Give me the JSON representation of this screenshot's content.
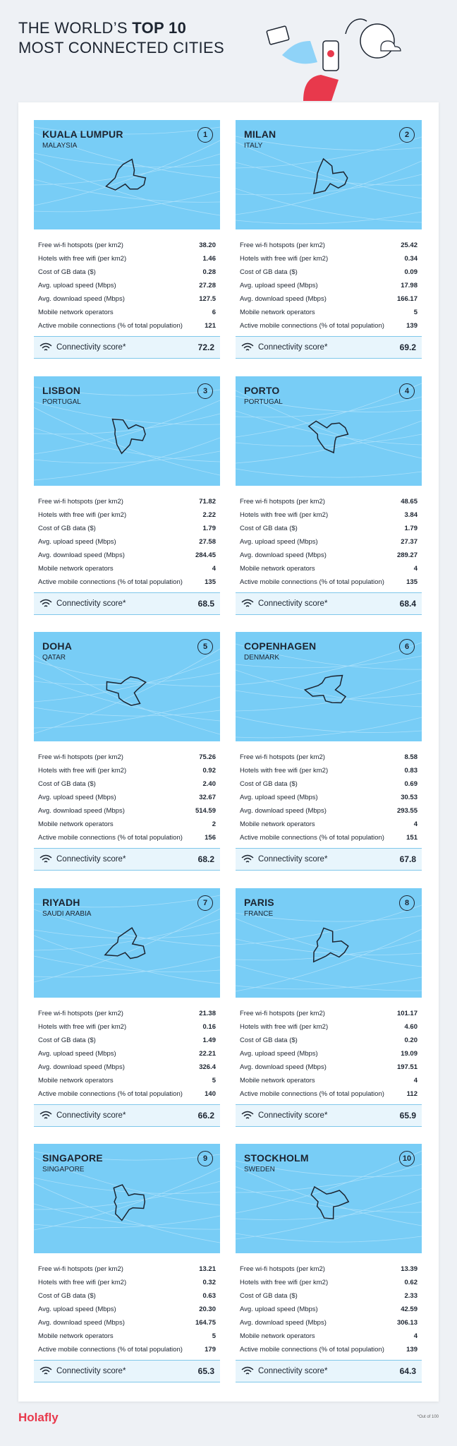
{
  "header": {
    "title_parts": [
      "THE WORLD’S",
      "TOP 10",
      "MOST CONNECTED CITIES"
    ]
  },
  "metric_labels": [
    "Free wi-fi hotspots (per km2)",
    "Hotels with free wifi (per km2)",
    "Cost of GB data ($)",
    "Avg. upload speed (Mbps)",
    "Avg. download speed (Mbps)",
    "Mobile network operators",
    "Active mobile connections (% of total population)"
  ],
  "score_label": "Connectivity score*",
  "cities": [
    {
      "rank": 1,
      "name": "KUALA LUMPUR",
      "country": "MALAYSIA",
      "values": [
        "38.20",
        "1.46",
        "0.28",
        "27.28",
        "127.5",
        "6",
        "121"
      ],
      "score": 72.2
    },
    {
      "rank": 2,
      "name": "MILAN",
      "country": "ITALY",
      "values": [
        "25.42",
        "0.34",
        "0.09",
        "17.98",
        "166.17",
        "5",
        "139"
      ],
      "score": 69.2
    },
    {
      "rank": 3,
      "name": "LISBON",
      "country": "PORTUGAL",
      "values": [
        "71.82",
        "2.22",
        "1.79",
        "27.58",
        "284.45",
        "4",
        "135"
      ],
      "score": 68.5
    },
    {
      "rank": 4,
      "name": "PORTO",
      "country": "PORTUGAL",
      "values": [
        "48.65",
        "3.84",
        "1.79",
        "27.37",
        "289.27",
        "4",
        "135"
      ],
      "score": 68.4
    },
    {
      "rank": 5,
      "name": "DOHA",
      "country": "QATAR",
      "values": [
        "75.26",
        "0.92",
        "2.40",
        "32.67",
        "514.59",
        "2",
        "156"
      ],
      "score": 68.2
    },
    {
      "rank": 6,
      "name": "COPENHAGEN",
      "country": "DENMARK",
      "values": [
        "8.58",
        "0.83",
        "0.69",
        "30.53",
        "293.55",
        "4",
        "151"
      ],
      "score": 67.8
    },
    {
      "rank": 7,
      "name": "RIYADH",
      "country": "SAUDI ARABIA",
      "values": [
        "21.38",
        "0.16",
        "1.49",
        "22.21",
        "326.4",
        "5",
        "140"
      ],
      "score": 66.2
    },
    {
      "rank": 8,
      "name": "PARIS",
      "country": "FRANCE",
      "values": [
        "101.17",
        "4.60",
        "0.20",
        "19.09",
        "197.51",
        "4",
        "112"
      ],
      "score": 65.9
    },
    {
      "rank": 9,
      "name": "SINGAPORE",
      "country": "SINGAPORE",
      "values": [
        "13.21",
        "0.32",
        "0.63",
        "20.30",
        "164.75",
        "5",
        "179"
      ],
      "score": 65.3
    },
    {
      "rank": 10,
      "name": "STOCKHOLM",
      "country": "SWEDEN",
      "values": [
        "13.39",
        "0.62",
        "2.33",
        "42.59",
        "306.13",
        "4",
        "139"
      ],
      "score": 64.3
    }
  ],
  "footer": {
    "logo": "Holafly",
    "note": "*Out of 100"
  }
}
